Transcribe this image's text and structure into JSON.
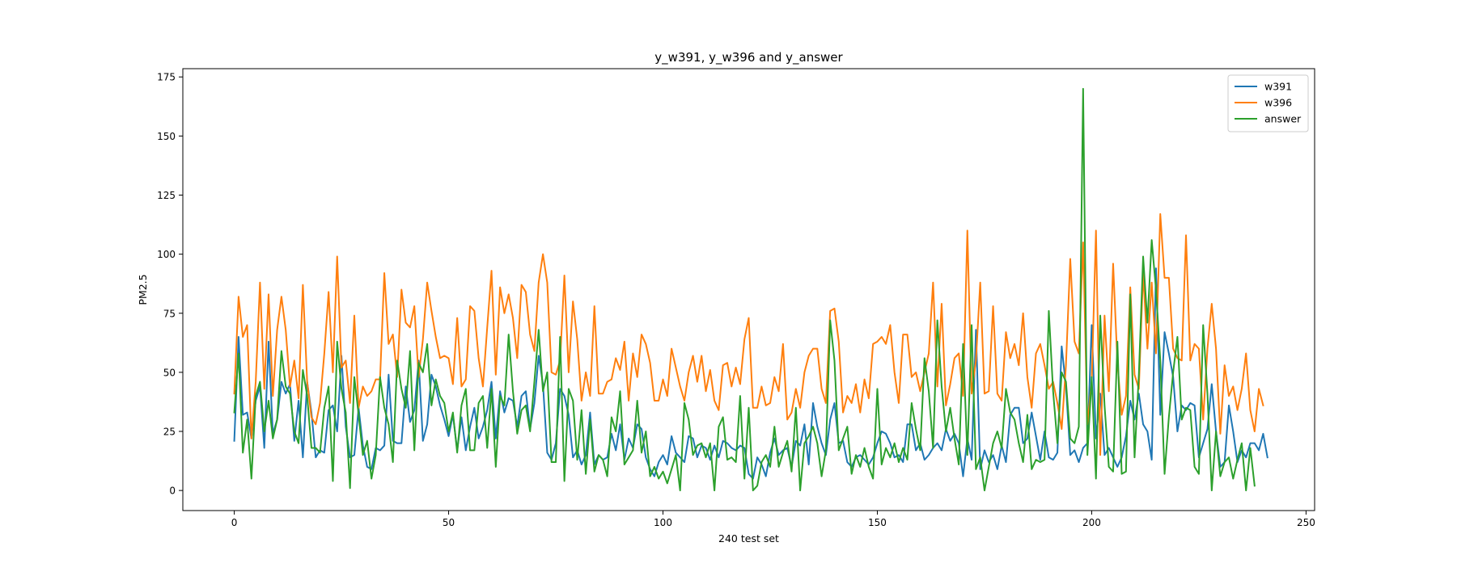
{
  "chart_data": {
    "type": "line",
    "title": "y_w391, y_w396 and y_answer",
    "xlabel": "240 test set",
    "ylabel": "PM2.5",
    "xlim": [
      -12,
      252
    ],
    "ylim": [
      -8.5,
      178.5
    ],
    "xticks": [
      0,
      50,
      100,
      150,
      200,
      250
    ],
    "yticks": [
      0,
      25,
      50,
      75,
      100,
      125,
      150,
      175
    ],
    "grid": false,
    "legend_position": "top-right",
    "series": [
      {
        "name": "w391",
        "color": "#1f77b4",
        "values": [
          21,
          65,
          32,
          33,
          22,
          38,
          44,
          18,
          63,
          24,
          30,
          46,
          41,
          45,
          21,
          38,
          14,
          46,
          33,
          14,
          17,
          16,
          34,
          36,
          25,
          57,
          27,
          14,
          15,
          35,
          19,
          10,
          9,
          18,
          17,
          19,
          49,
          21,
          20,
          20,
          44,
          29,
          34,
          55,
          21,
          28,
          49,
          44,
          36,
          30,
          23,
          32,
          17,
          31,
          17,
          27,
          35,
          22,
          27,
          34,
          46,
          22,
          42,
          33,
          39,
          38,
          27,
          40,
          42,
          26,
          37,
          57,
          45,
          16,
          13,
          20,
          43,
          40,
          32,
          14,
          17,
          11,
          15,
          33,
          11,
          15,
          13,
          14,
          24,
          17,
          28,
          13,
          22,
          18,
          28,
          26,
          14,
          9,
          6,
          12,
          15,
          11,
          23,
          16,
          14,
          12,
          23,
          22,
          14,
          19,
          18,
          13,
          19,
          14,
          21,
          20,
          18,
          17,
          19,
          18,
          7,
          5,
          14,
          11,
          6,
          16,
          22,
          15,
          17,
          18,
          10,
          21,
          19,
          28,
          11,
          37,
          27,
          20,
          15,
          30,
          37,
          20,
          21,
          12,
          10,
          14,
          15,
          13,
          11,
          14,
          20,
          25,
          24,
          20,
          14,
          15,
          12,
          28,
          28,
          17,
          20,
          13,
          15,
          18,
          20,
          17,
          26,
          21,
          24,
          20,
          6,
          22,
          13,
          68,
          9,
          17,
          12,
          15,
          9,
          19,
          12,
          32,
          35,
          35,
          20,
          22,
          33,
          23,
          13,
          25,
          14,
          13,
          16,
          61,
          44,
          15,
          17,
          12,
          18,
          20,
          70,
          22,
          41,
          15,
          18,
          14,
          10,
          14,
          23,
          38,
          30,
          41,
          28,
          25,
          13,
          94,
          32,
          67,
          58,
          48,
          25,
          36,
          34,
          37,
          36,
          14,
          20,
          26,
          45,
          25,
          10,
          12,
          36,
          25,
          12,
          17,
          14,
          20,
          20,
          17,
          24,
          14
        ]
      },
      {
        "name": "w396",
        "color": "#ff7f0e",
        "values": [
          41,
          82,
          65,
          70,
          22,
          46,
          88,
          43,
          83,
          40,
          68,
          82,
          68,
          44,
          55,
          39,
          87,
          46,
          31,
          28,
          37,
          58,
          84,
          50,
          99,
          52,
          55,
          37,
          74,
          35,
          44,
          40,
          42,
          47,
          47,
          92,
          62,
          66,
          48,
          85,
          71,
          69,
          78,
          48,
          64,
          88,
          76,
          65,
          56,
          57,
          56,
          45,
          73,
          44,
          47,
          78,
          76,
          56,
          44,
          69,
          93,
          49,
          86,
          75,
          83,
          73,
          56,
          87,
          84,
          66,
          59,
          88,
          100,
          88,
          50,
          49,
          55,
          91,
          50,
          80,
          64,
          38,
          50,
          40,
          78,
          41,
          41,
          46,
          47,
          56,
          51,
          63,
          38,
          58,
          48,
          66,
          62,
          54,
          38,
          38,
          47,
          40,
          60,
          52,
          44,
          38,
          50,
          57,
          46,
          57,
          42,
          51,
          38,
          34,
          53,
          54,
          44,
          52,
          45,
          64,
          73,
          35,
          35,
          44,
          36,
          37,
          48,
          42,
          62,
          30,
          33,
          43,
          35,
          50,
          57,
          60,
          60,
          43,
          37,
          76,
          77,
          63,
          33,
          40,
          37,
          45,
          33,
          47,
          39,
          62,
          63,
          65,
          62,
          70,
          50,
          37,
          66,
          66,
          48,
          50,
          42,
          50,
          58,
          88,
          44,
          79,
          36,
          45,
          56,
          58,
          40,
          110,
          41,
          55,
          88,
          41,
          42,
          78,
          41,
          38,
          67,
          56,
          62,
          53,
          75,
          48,
          35,
          58,
          62,
          53,
          43,
          46,
          37,
          26,
          53,
          98,
          63,
          58,
          105,
          28,
          46,
          110,
          15,
          74,
          42,
          96,
          54,
          32,
          40,
          86,
          49,
          43,
          92,
          60,
          88,
          58,
          117,
          90,
          90,
          60,
          56,
          55,
          108,
          55,
          62,
          60,
          30,
          60,
          79,
          60,
          24,
          53,
          40,
          44,
          34,
          43,
          58,
          34,
          25,
          43,
          36
        ]
      },
      {
        "name": "answer",
        "color": "#2ca02c",
        "values": [
          33,
          58,
          16,
          30,
          5,
          40,
          46,
          25,
          38,
          22,
          30,
          59,
          44,
          41,
          25,
          20,
          51,
          40,
          18,
          18,
          16,
          35,
          44,
          4,
          63,
          43,
          33,
          1,
          48,
          32,
          15,
          21,
          5,
          15,
          48,
          35,
          28,
          12,
          55,
          43,
          35,
          59,
          17,
          54,
          50,
          62,
          36,
          47,
          40,
          37,
          25,
          33,
          16,
          36,
          43,
          17,
          17,
          37,
          40,
          18,
          43,
          10,
          40,
          36,
          66,
          42,
          24,
          34,
          36,
          25,
          46,
          68,
          42,
          50,
          12,
          12,
          65,
          4,
          43,
          38,
          13,
          34,
          7,
          30,
          8,
          15,
          13,
          6,
          31,
          25,
          42,
          11,
          14,
          17,
          38,
          16,
          25,
          6,
          10,
          5,
          8,
          3,
          9,
          15,
          0,
          37,
          30,
          15,
          19,
          20,
          14,
          20,
          0,
          27,
          31,
          13,
          14,
          12,
          40,
          5,
          35,
          0,
          2,
          12,
          15,
          10,
          27,
          10,
          16,
          21,
          8,
          35,
          0,
          20,
          23,
          27,
          20,
          6,
          17,
          72,
          55,
          17,
          22,
          27,
          7,
          15,
          10,
          18,
          10,
          5,
          43,
          11,
          18,
          14,
          20,
          12,
          18,
          13,
          37,
          26,
          17,
          56,
          42,
          18,
          72,
          44,
          25,
          35,
          22,
          11,
          62,
          15,
          70,
          9,
          14,
          0,
          10,
          20,
          25,
          18,
          43,
          33,
          30,
          20,
          12,
          32,
          9,
          13,
          12,
          13,
          76,
          42,
          20,
          50,
          46,
          22,
          20,
          27,
          170,
          15,
          48,
          5,
          74,
          36,
          10,
          8,
          63,
          7,
          8,
          83,
          14,
          49,
          99,
          71,
          106,
          85,
          55,
          7,
          31,
          50,
          65,
          30,
          35,
          34,
          10,
          7,
          70,
          41,
          0,
          25,
          6,
          12,
          14,
          5,
          13,
          20,
          0,
          18,
          2
        ]
      }
    ]
  }
}
